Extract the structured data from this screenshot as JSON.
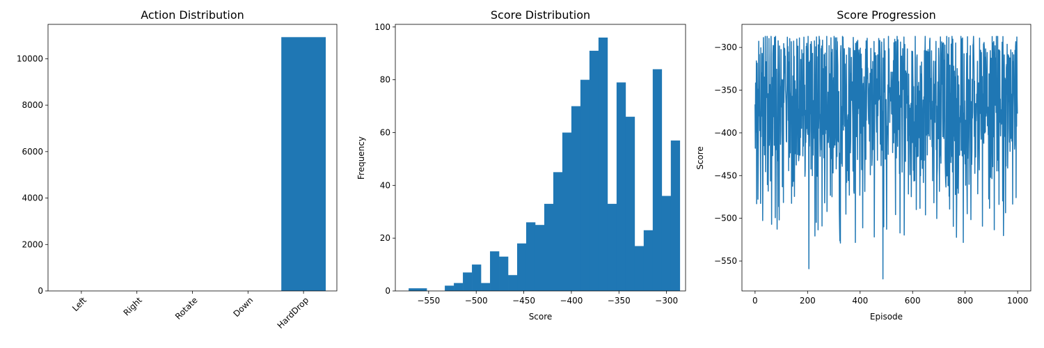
{
  "chart_data": [
    {
      "type": "bar",
      "title": "Action Distribution",
      "xlabel": "",
      "ylabel": "",
      "categories": [
        "Left",
        "Right",
        "Rotate",
        "Down",
        "HardDrop"
      ],
      "values": [
        0,
        0,
        0,
        0,
        10930
      ],
      "ylim": [
        0,
        11480
      ],
      "yticks": [
        0,
        2000,
        4000,
        6000,
        8000,
        10000
      ],
      "xtick_rotation": 45,
      "color": "#1f77b4"
    },
    {
      "type": "bar",
      "title": "Score Distribution",
      "xlabel": "Score",
      "ylabel": "Frequency",
      "bin_start": -571,
      "bin_width": 9.5,
      "values": [
        1,
        1,
        0,
        0,
        2,
        3,
        7,
        10,
        3,
        15,
        13,
        6,
        18,
        26,
        25,
        33,
        45,
        60,
        70,
        80,
        91,
        96,
        33,
        79,
        66,
        17,
        23,
        84,
        36,
        57
      ],
      "xlim": [
        -585,
        -280
      ],
      "ylim": [
        0,
        101
      ],
      "xticks": [
        -550,
        -500,
        -450,
        -400,
        -350,
        -300
      ],
      "yticks": [
        0,
        20,
        40,
        60,
        80,
        100
      ],
      "color": "#1f77b4"
    },
    {
      "type": "line",
      "title": "Score Progression",
      "xlabel": "Episode",
      "ylabel": "Score",
      "n_points": 1000,
      "ymin_observed": -571,
      "ymax_observed": -287,
      "xlim": [
        -50,
        1050
      ],
      "ylim": [
        -585,
        -273
      ],
      "xticks": [
        0,
        200,
        400,
        600,
        800,
        1000
      ],
      "yticks": [
        -550,
        -500,
        -450,
        -400,
        -350,
        -300
      ],
      "color": "#1f77b4"
    }
  ]
}
